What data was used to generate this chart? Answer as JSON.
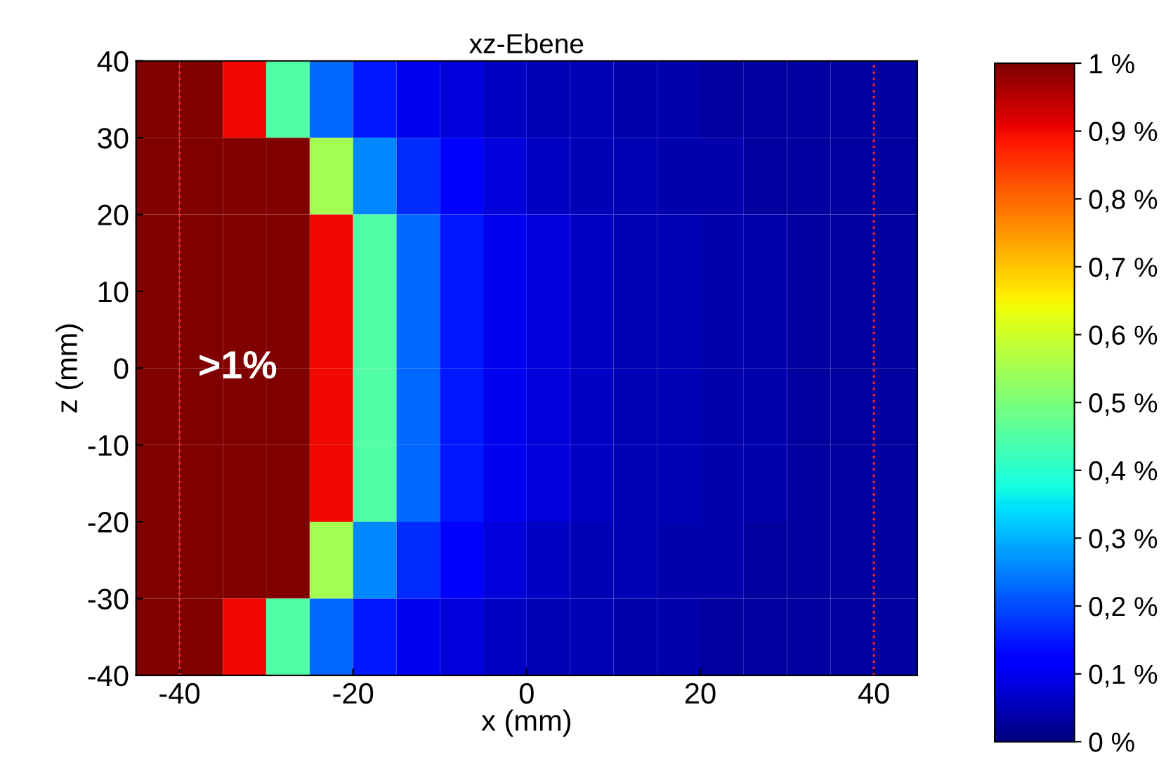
{
  "chart_data": {
    "type": "heatmap",
    "title": "xz-Ebene",
    "xlabel": "x (mm)",
    "ylabel": "z (mm)",
    "x": [
      -42.5,
      -37.5,
      -32.5,
      -27.5,
      -22.5,
      -17.5,
      -12.5,
      -7.5,
      -2.5,
      2.5,
      7.5,
      12.5,
      17.5,
      22.5,
      27.5,
      32.5,
      37.5,
      42.5
    ],
    "cells": [
      [
        1,
        1,
        0.9,
        0.45,
        0.23,
        0.15,
        0.1,
        0.08,
        0.06,
        0.05,
        0.05,
        0.04,
        0.04,
        0.03,
        0.03,
        0.03,
        0.03,
        0.03
      ],
      [
        1,
        1,
        1,
        1,
        0.55,
        0.26,
        0.17,
        0.11,
        0.08,
        0.06,
        0.05,
        0.05,
        0.04,
        0.04,
        0.03,
        0.03,
        0.03,
        0.03
      ],
      [
        1,
        1,
        1,
        1,
        0.9,
        0.45,
        0.23,
        0.15,
        0.1,
        0.08,
        0.06,
        0.05,
        0.05,
        0.04,
        0.04,
        0.03,
        0.03,
        0.03
      ],
      [
        1,
        1,
        1,
        1,
        0.9,
        0.45,
        0.23,
        0.15,
        0.1,
        0.08,
        0.06,
        0.05,
        0.05,
        0.04,
        0.04,
        0.03,
        0.03,
        0.03
      ],
      [
        1,
        1,
        1,
        1,
        0.9,
        0.45,
        0.23,
        0.15,
        0.1,
        0.08,
        0.06,
        0.05,
        0.05,
        0.04,
        0.04,
        0.03,
        0.03,
        0.03
      ],
      [
        1,
        1,
        1,
        1,
        0.9,
        0.45,
        0.23,
        0.15,
        0.1,
        0.08,
        0.06,
        0.05,
        0.05,
        0.04,
        0.04,
        0.03,
        0.03,
        0.03
      ],
      [
        1,
        1,
        1,
        1,
        0.55,
        0.26,
        0.17,
        0.11,
        0.08,
        0.06,
        0.05,
        0.05,
        0.04,
        0.04,
        0.03,
        0.03,
        0.03,
        0.03
      ],
      [
        1,
        1,
        0.9,
        0.45,
        0.23,
        0.15,
        0.1,
        0.08,
        0.06,
        0.05,
        0.05,
        0.04,
        0.04,
        0.03,
        0.03,
        0.03,
        0.03,
        0.03
      ]
    ],
    "xlim": [
      -45,
      45
    ],
    "ylim": [
      -40,
      40
    ],
    "xticks": [
      -40,
      -20,
      0,
      20,
      40
    ],
    "yticks": [
      -40,
      -30,
      -20,
      -10,
      0,
      10,
      20,
      30,
      40
    ],
    "clim": [
      0,
      1
    ],
    "cticks": [
      {
        "value": 0,
        "label": "0 %"
      },
      {
        "value": 0.1,
        "label": "0,1 %"
      },
      {
        "value": 0.2,
        "label": "0,2 %"
      },
      {
        "value": 0.3,
        "label": "0,3 %"
      },
      {
        "value": 0.4,
        "label": "0,4 %"
      },
      {
        "value": 0.5,
        "label": "0,5 %"
      },
      {
        "value": 0.6,
        "label": "0,6 %"
      },
      {
        "value": 0.7,
        "label": "0,7 %"
      },
      {
        "value": 0.8,
        "label": "0,8 %"
      },
      {
        "value": 0.9,
        "label": "0,9 %"
      },
      {
        "value": 1,
        "label": "1 %"
      }
    ],
    "ref_lines": [
      {
        "axis": "x",
        "value": -40,
        "color": "#e8262b",
        "line_style": "dotted"
      },
      {
        "axis": "x",
        "value": 40,
        "color": "#e8262b",
        "line_style": "dotted"
      }
    ],
    "annotations": [
      ">1%"
    ],
    "grid": false,
    "legend": false
  }
}
